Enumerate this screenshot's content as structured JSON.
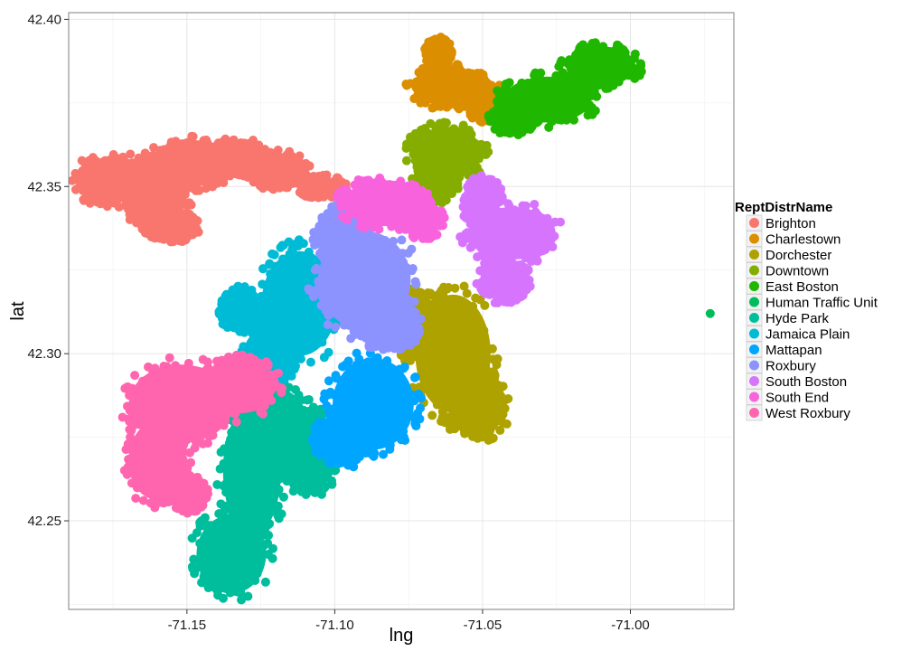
{
  "chart_data": {
    "type": "scatter",
    "title": "",
    "xlabel": "lng",
    "ylabel": "lat",
    "xlim": [
      -71.19,
      -70.965
    ],
    "ylim": [
      42.2235,
      42.402
    ],
    "x_ticks": [
      -71.15,
      -71.1,
      -71.05,
      -71.0
    ],
    "x_tick_labels": [
      "-71.15",
      "-71.10",
      "-71.05",
      "-71.00"
    ],
    "y_ticks": [
      42.25,
      42.3,
      42.35,
      42.4
    ],
    "y_tick_labels": [
      "42.25",
      "42.30",
      "42.35",
      "42.40"
    ],
    "grid": true,
    "legend_position": "right",
    "legend_title": "ReptDistrName",
    "series": [
      {
        "name": "Brighton",
        "color": "#F8766D",
        "regions": [
          [
            -71.175,
            42.352,
            0.013,
            0.007
          ],
          [
            -71.16,
            42.348,
            0.01,
            0.011
          ],
          [
            -71.148,
            42.357,
            0.014,
            0.007
          ],
          [
            -71.135,
            42.359,
            0.012,
            0.005
          ],
          [
            -71.12,
            42.355,
            0.01,
            0.005
          ],
          [
            -71.105,
            42.35,
            0.008,
            0.003
          ],
          [
            -71.155,
            42.338,
            0.008,
            0.004
          ]
        ]
      },
      {
        "name": "Charlestown",
        "color": "#DB8E00",
        "regions": [
          [
            -71.062,
            42.38,
            0.012,
            0.006
          ],
          [
            -71.048,
            42.375,
            0.007,
            0.005
          ],
          [
            -71.065,
            42.39,
            0.004,
            0.004
          ]
        ]
      },
      {
        "name": "Dorchester",
        "color": "#AEA200",
        "regions": [
          [
            -71.06,
            42.3,
            0.013,
            0.018
          ],
          [
            -71.052,
            42.285,
            0.01,
            0.01
          ],
          [
            -71.072,
            42.308,
            0.008,
            0.01
          ]
        ]
      },
      {
        "name": "Downtown",
        "color": "#85AD00",
        "regions": [
          [
            -71.062,
            42.36,
            0.012,
            0.008
          ],
          [
            -71.066,
            42.352,
            0.007,
            0.006
          ]
        ]
      },
      {
        "name": "East Boston",
        "color": "#1FB700",
        "regions": [
          [
            -71.028,
            42.376,
            0.015,
            0.007
          ],
          [
            -71.01,
            42.386,
            0.012,
            0.006
          ],
          [
            -71.04,
            42.37,
            0.007,
            0.004
          ]
        ]
      },
      {
        "name": "Human Traffic Unit",
        "color": "#00BC5A",
        "regions": [],
        "points": [
          [
            -70.973,
            42.312
          ]
        ]
      },
      {
        "name": "Hyde Park",
        "color": "#00BD9C",
        "regions": [
          [
            -71.128,
            42.265,
            0.01,
            0.02
          ],
          [
            -71.12,
            42.276,
            0.012,
            0.014
          ],
          [
            -71.135,
            42.24,
            0.012,
            0.012
          ],
          [
            -71.108,
            42.27,
            0.008,
            0.012
          ]
        ]
      },
      {
        "name": "Jamaica Plain",
        "color": "#00BBD5",
        "regions": [
          [
            -71.112,
            42.315,
            0.013,
            0.016
          ],
          [
            -71.122,
            42.3,
            0.009,
            0.008
          ],
          [
            -71.132,
            42.313,
            0.006,
            0.006
          ]
        ]
      },
      {
        "name": "Mattapan",
        "color": "#00A5FF",
        "regions": [
          [
            -71.087,
            42.285,
            0.014,
            0.014
          ],
          [
            -71.097,
            42.275,
            0.009,
            0.008
          ]
        ]
      },
      {
        "name": "Roxbury",
        "color": "#8C93FF",
        "regions": [
          [
            -71.09,
            42.322,
            0.016,
            0.015
          ],
          [
            -71.098,
            42.335,
            0.008,
            0.008
          ],
          [
            -71.082,
            42.308,
            0.01,
            0.006
          ]
        ]
      },
      {
        "name": "South Boston",
        "color": "#D774FD",
        "regions": [
          [
            -71.04,
            42.336,
            0.015,
            0.008
          ],
          [
            -71.05,
            42.345,
            0.006,
            0.007
          ],
          [
            -71.043,
            42.322,
            0.008,
            0.006
          ]
        ]
      },
      {
        "name": "South End",
        "color": "#F962DD",
        "regions": [
          [
            -71.083,
            42.345,
            0.014,
            0.007
          ],
          [
            -71.07,
            42.34,
            0.006,
            0.005
          ]
        ]
      },
      {
        "name": "West Roxbury",
        "color": "#FF65AF",
        "regions": [
          [
            -71.152,
            42.285,
            0.018,
            0.012
          ],
          [
            -71.16,
            42.268,
            0.01,
            0.012
          ],
          [
            -71.132,
            42.29,
            0.012,
            0.008
          ],
          [
            -71.15,
            42.258,
            0.006,
            0.005
          ]
        ]
      }
    ]
  }
}
